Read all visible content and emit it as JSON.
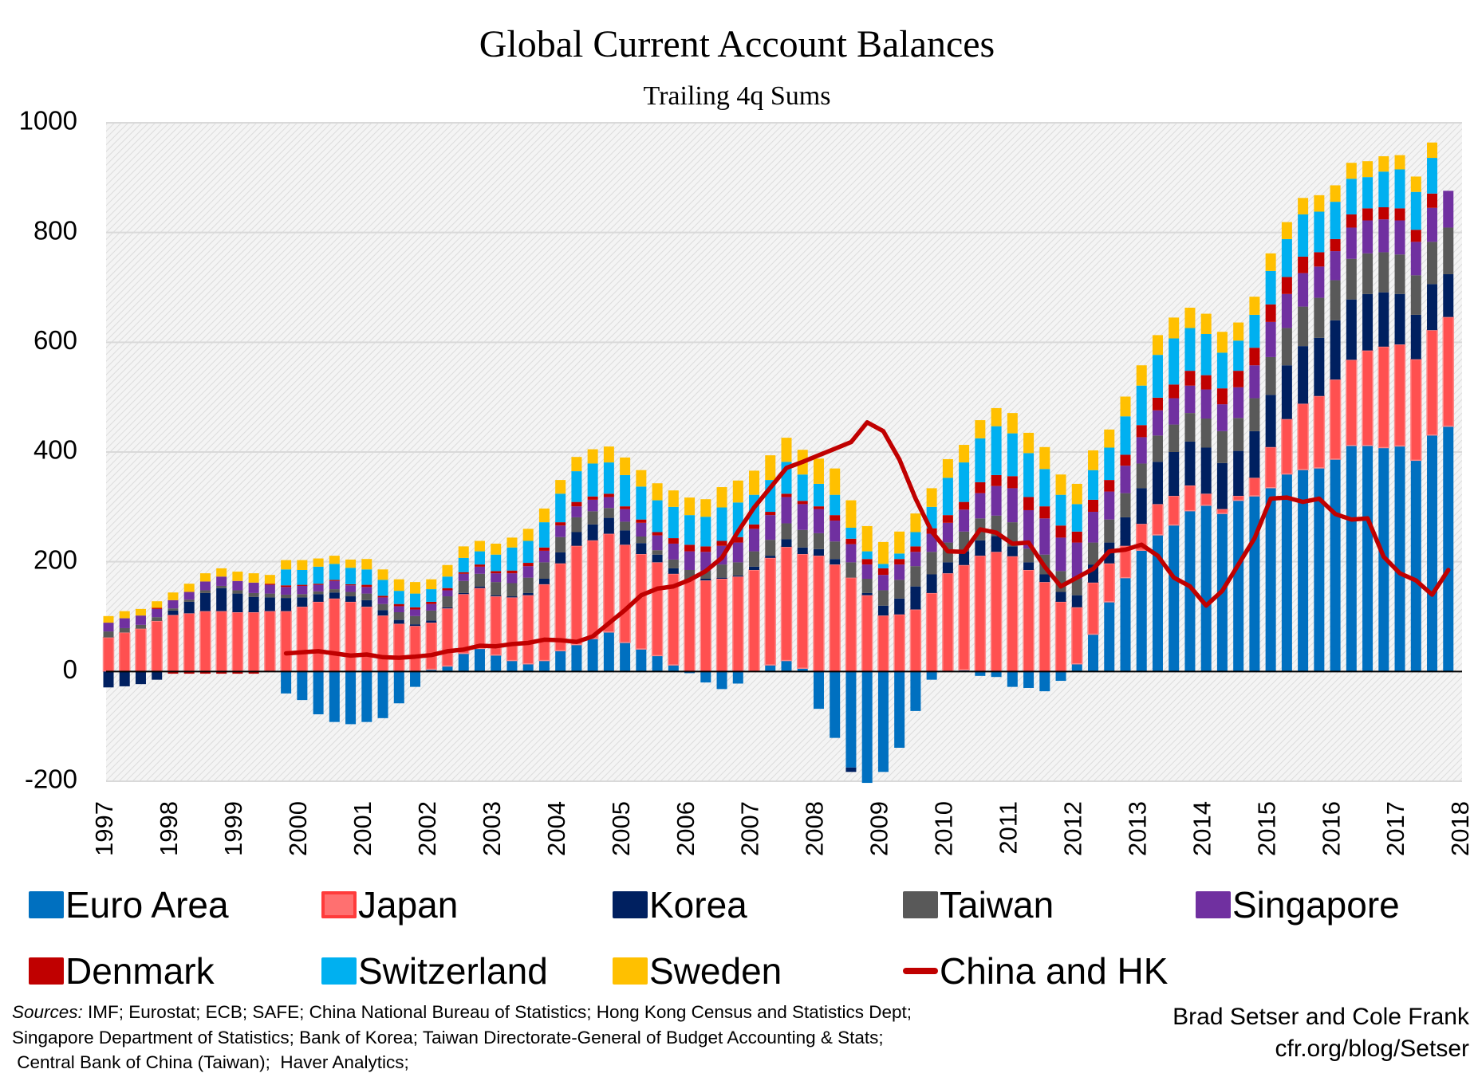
{
  "header": {
    "title": "Global Current Account Balances",
    "subtitle": "Trailing 4q Sums"
  },
  "footer": {
    "sources_label": "Sources:",
    "sources_line1": " IMF; Eurostat; ECB; SAFE; China National Bureau of Statistics; Hong Kong Census and Statistics Dept;",
    "sources_line2": "Singapore Department of Statistics; Bank of Korea; Taiwan Directorate-General of Budget Accounting & Stats;",
    "sources_line3": " Central Bank of China (Taiwan);  Haver Analytics;",
    "credit_authors": "Brad Setser and Cole Frank",
    "credit_url": "cfr.org/blog/Setser"
  },
  "chart_data": {
    "type": "bar",
    "stacked": true,
    "title": "Global Current Account Balances",
    "subtitle": "Trailing 4q Sums",
    "xlabel": "",
    "ylabel": "",
    "ylim": [
      -200,
      1000
    ],
    "y_ticks": [
      "1000",
      "800",
      "600",
      "400",
      "200",
      "0",
      "-200"
    ],
    "x_ticks": [
      "1997",
      "1998",
      "1999",
      "2000",
      "2001",
      "2002",
      "2003",
      "2004",
      "2005",
      "2006",
      "2007",
      "2008",
      "2009",
      "2010",
      "2011",
      "2012",
      "2013",
      "2014",
      "2015",
      "2016",
      "2017",
      "2018"
    ],
    "grid": true,
    "legend_position": "bottom",
    "quarters": [
      "1997Q1",
      "1997Q2",
      "1997Q3",
      "1997Q4",
      "1998Q1",
      "1998Q2",
      "1998Q3",
      "1998Q4",
      "1999Q1",
      "1999Q2",
      "1999Q3",
      "1999Q4",
      "2000Q1",
      "2000Q2",
      "2000Q3",
      "2000Q4",
      "2001Q1",
      "2001Q2",
      "2001Q3",
      "2001Q4",
      "2002Q1",
      "2002Q2",
      "2002Q3",
      "2002Q4",
      "2003Q1",
      "2003Q2",
      "2003Q3",
      "2003Q4",
      "2004Q1",
      "2004Q2",
      "2004Q3",
      "2004Q4",
      "2005Q1",
      "2005Q2",
      "2005Q3",
      "2005Q4",
      "2006Q1",
      "2006Q2",
      "2006Q3",
      "2006Q4",
      "2007Q1",
      "2007Q2",
      "2007Q3",
      "2007Q4",
      "2008Q1",
      "2008Q2",
      "2008Q3",
      "2008Q4",
      "2009Q1",
      "2009Q2",
      "2009Q3",
      "2009Q4",
      "2010Q1",
      "2010Q2",
      "2010Q3",
      "2010Q4",
      "2011Q1",
      "2011Q2",
      "2011Q3",
      "2011Q4",
      "2012Q1",
      "2012Q2",
      "2012Q3",
      "2012Q4",
      "2013Q1",
      "2013Q2",
      "2013Q3",
      "2013Q4",
      "2014Q1",
      "2014Q2",
      "2014Q3",
      "2014Q4",
      "2015Q1",
      "2015Q2",
      "2015Q3",
      "2015Q4",
      "2016Q1",
      "2016Q2",
      "2016Q3",
      "2016Q4",
      "2017Q1",
      "2017Q2",
      "2017Q3",
      "2017Q4"
    ],
    "series": [
      {
        "name": "Euro Area",
        "kind": "bar",
        "color": "#0070c0",
        "values": [
          0,
          0,
          0,
          0,
          0,
          0,
          0,
          0,
          0,
          0,
          0,
          -40,
          -52,
          -78,
          -92,
          -96,
          -92,
          -85,
          -58,
          -28,
          4,
          10,
          33,
          42,
          30,
          20,
          14,
          20,
          38,
          49,
          60,
          72,
          53,
          41,
          29,
          12,
          -3,
          -20,
          -32,
          -22,
          0,
          12,
          20,
          6,
          -68,
          -121,
          -175,
          -203,
          -183,
          -139,
          -72,
          -15,
          0,
          3,
          -8,
          -10,
          -28,
          -30,
          -36,
          -17,
          14,
          68,
          127,
          171,
          221,
          249,
          267,
          293,
          303,
          288,
          312,
          320,
          335,
          360,
          368,
          371,
          387,
          412,
          412,
          408,
          411,
          385,
          431,
          447
        ]
      },
      {
        "name": "Japan",
        "kind": "bar",
        "color": "#ff5050",
        "values": [
          62,
          71,
          78,
          92,
          103,
          106,
          110,
          110,
          108,
          108,
          110,
          110,
          118,
          127,
          133,
          127,
          118,
          102,
          87,
          83,
          85,
          105,
          108,
          110,
          107,
          115,
          125,
          139,
          159,
          180,
          179,
          179,
          178,
          173,
          170,
          166,
          167,
          166,
          169,
          173,
          185,
          195,
          207,
          208,
          211,
          195,
          171,
          139,
          102,
          104,
          113,
          143,
          179,
          191,
          211,
          218,
          210,
          185,
          163,
          127,
          103,
          94,
          70,
          58,
          48,
          56,
          53,
          46,
          21,
          8,
          8,
          33,
          74,
          100,
          120,
          131,
          145,
          156,
          173,
          184,
          185,
          184,
          191,
          199
        ]
      },
      {
        "name": "Korea",
        "kind": "bar",
        "color": "#002060",
        "values": [
          -29,
          -27,
          -23,
          -15,
          8,
          21,
          33,
          42,
          34,
          28,
          25,
          24,
          17,
          14,
          11,
          10,
          12,
          10,
          7,
          3,
          4,
          2,
          2,
          3,
          2,
          2,
          4,
          10,
          20,
          25,
          29,
          29,
          26,
          20,
          14,
          10,
          0,
          3,
          2,
          2,
          6,
          4,
          14,
          12,
          12,
          10,
          -8,
          4,
          18,
          29,
          42,
          34,
          20,
          25,
          28,
          29,
          18,
          14,
          14,
          18,
          22,
          33,
          38,
          52,
          65,
          77,
          80,
          80,
          84,
          84,
          82,
          85,
          95,
          98,
          105,
          106,
          108,
          110,
          103,
          99,
          92,
          81,
          84,
          78
        ]
      },
      {
        "name": "Taiwan",
        "kind": "bar",
        "color": "#595959",
        "values": [
          11,
          8,
          7,
          7,
          4,
          4,
          5,
          4,
          6,
          7,
          7,
          6,
          6,
          5,
          6,
          8,
          12,
          11,
          14,
          15,
          18,
          20,
          22,
          23,
          24,
          24,
          28,
          30,
          28,
          27,
          24,
          18,
          16,
          12,
          8,
          16,
          18,
          15,
          24,
          24,
          28,
          29,
          29,
          32,
          29,
          32,
          28,
          26,
          28,
          34,
          37,
          41,
          36,
          36,
          40,
          37,
          44,
          25,
          36,
          38,
          30,
          40,
          42,
          44,
          45,
          48,
          50,
          52,
          53,
          58,
          60,
          60,
          69,
          68,
          72,
          73,
          73,
          74,
          74,
          73,
          72,
          72,
          77,
          85
        ]
      },
      {
        "name": "Singapore",
        "kind": "bar",
        "color": "#7030a0",
        "values": [
          16,
          18,
          17,
          15,
          15,
          14,
          16,
          17,
          17,
          19,
          16,
          14,
          15,
          12,
          15,
          12,
          12,
          12,
          11,
          12,
          12,
          11,
          13,
          13,
          16,
          18,
          21,
          21,
          21,
          20,
          21,
          20,
          23,
          25,
          27,
          29,
          34,
          34,
          34,
          36,
          41,
          45,
          48,
          47,
          44,
          38,
          33,
          26,
          28,
          28,
          26,
          33,
          36,
          40,
          46,
          54,
          62,
          70,
          66,
          61,
          66,
          56,
          51,
          50,
          48,
          46,
          48,
          50,
          53,
          49,
          56,
          60,
          64,
          62,
          61,
          57,
          53,
          57,
          60,
          60,
          62,
          61,
          62,
          67
        ]
      },
      {
        "name": "Denmark",
        "kind": "bar",
        "color": "#c00000",
        "values": [
          0,
          0,
          0,
          2,
          -4,
          -4,
          -4,
          -4,
          -4,
          -4,
          2,
          3,
          2,
          2,
          2,
          2,
          4,
          3,
          4,
          4,
          4,
          4,
          3,
          4,
          4,
          5,
          6,
          6,
          6,
          8,
          6,
          6,
          5,
          6,
          6,
          10,
          12,
          10,
          9,
          10,
          8,
          6,
          6,
          6,
          5,
          10,
          10,
          10,
          12,
          10,
          10,
          10,
          14,
          14,
          20,
          20,
          22,
          24,
          22,
          22,
          20,
          22,
          21,
          20,
          22,
          23,
          25,
          27,
          26,
          29,
          30,
          32,
          32,
          31,
          30,
          26,
          22,
          24,
          22,
          22,
          22,
          22,
          26,
          null
        ]
      },
      {
        "name": "Switzerland",
        "kind": "bar",
        "color": "#00b0f0",
        "values": [
          null,
          null,
          null,
          null,
          null,
          null,
          null,
          null,
          null,
          null,
          null,
          29,
          27,
          31,
          29,
          30,
          28,
          29,
          24,
          25,
          23,
          21,
          26,
          24,
          30,
          42,
          40,
          46,
          52,
          56,
          60,
          57,
          57,
          60,
          58,
          57,
          54,
          54,
          61,
          63,
          54,
          58,
          58,
          48,
          41,
          37,
          20,
          14,
          8,
          10,
          26,
          39,
          68,
          72,
          80,
          89,
          78,
          80,
          68,
          56,
          50,
          54,
          59,
          70,
          72,
          78,
          84,
          78,
          75,
          65,
          55,
          60,
          61,
          69,
          77,
          74,
          68,
          65,
          57,
          65,
          71,
          69,
          65,
          null
        ]
      },
      {
        "name": "Sweden",
        "kind": "bar",
        "color": "#ffc000",
        "values": [
          12,
          13,
          12,
          12,
          14,
          15,
          15,
          15,
          17,
          17,
          16,
          17,
          18,
          15,
          15,
          15,
          19,
          19,
          21,
          21,
          18,
          21,
          21,
          19,
          20,
          18,
          22,
          25,
          25,
          26,
          26,
          29,
          32,
          30,
          31,
          30,
          32,
          32,
          37,
          40,
          44,
          45,
          44,
          45,
          46,
          48,
          50,
          46,
          40,
          40,
          34,
          34,
          34,
          32,
          33,
          33,
          37,
          37,
          40,
          37,
          37,
          36,
          33,
          36,
          37,
          36,
          38,
          37,
          37,
          38,
          33,
          33,
          32,
          31,
          30,
          30,
          30,
          29,
          29,
          28,
          26,
          28,
          28,
          null
        ]
      },
      {
        "name": "China and HK",
        "kind": "line",
        "color": "#c00000",
        "values": [
          null,
          null,
          null,
          null,
          null,
          null,
          null,
          null,
          null,
          null,
          null,
          33,
          35,
          37,
          33,
          29,
          31,
          26,
          25,
          27,
          30,
          37,
          40,
          47,
          46,
          50,
          52,
          58,
          57,
          54,
          64,
          88,
          112,
          139,
          151,
          155,
          167,
          183,
          207,
          255,
          299,
          335,
          371,
          382,
          394,
          406,
          418,
          454,
          438,
          386,
          315,
          255,
          219,
          218,
          259,
          253,
          233,
          235,
          191,
          155,
          171,
          187,
          219,
          222,
          231,
          211,
          171,
          155,
          120,
          147,
          195,
          243,
          315,
          317,
          309,
          315,
          287,
          277,
          279,
          209,
          179,
          166,
          140,
          185
        ]
      }
    ]
  }
}
